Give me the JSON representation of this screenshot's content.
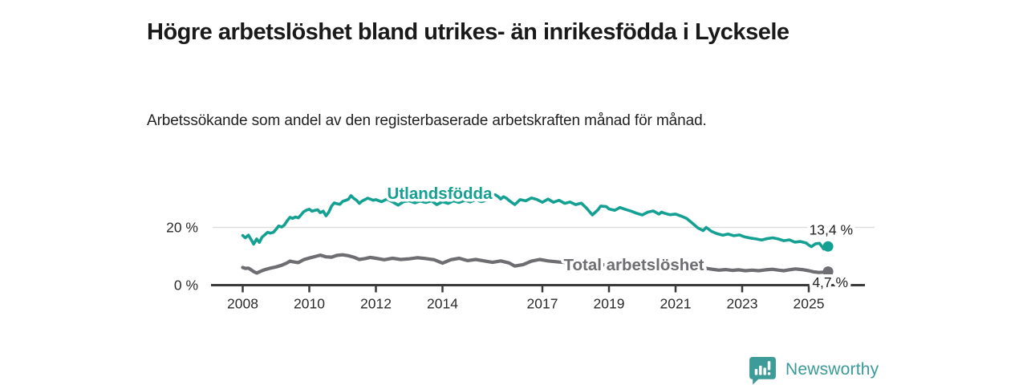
{
  "header": {
    "title": "Högre arbetslöshet bland utrikes- än inrikesfödda i Lycksele",
    "subtitle": "Arbetssökande som andel av den registerbaserade arbetskraften månad för månad."
  },
  "chart_data": {
    "type": "line",
    "unit": "%",
    "title": "",
    "xlabel": "",
    "ylabel": "",
    "ylim": [
      0,
      36
    ],
    "xlim": [
      2007.9,
      2025.8
    ],
    "grid": "single light horizontal gridline at 20 %",
    "gridlines_at": [
      20
    ],
    "legend_position": "inline labels placed on the lines",
    "y_ticks": [
      {
        "value": 20,
        "label": "20 %"
      },
      {
        "value": 0,
        "label": "0 %"
      }
    ],
    "x_ticks": [
      {
        "value": 2008,
        "label": "2008"
      },
      {
        "value": 2010,
        "label": "2010"
      },
      {
        "value": 2012,
        "label": "2012"
      },
      {
        "value": 2014,
        "label": "2014"
      },
      {
        "value": 2017,
        "label": "2017"
      },
      {
        "value": 2019,
        "label": "2019"
      },
      {
        "value": 2021,
        "label": "2021"
      },
      {
        "value": 2023,
        "label": "2023"
      },
      {
        "value": 2025,
        "label": "2025"
      }
    ],
    "series": [
      {
        "name": "Utlandsfödda",
        "color": "#14A092",
        "end_value": 13.4,
        "end_label": "13,4 %",
        "points": [
          [
            2008.0,
            17.2
          ],
          [
            2008.08,
            16.4
          ],
          [
            2008.17,
            17.3
          ],
          [
            2008.25,
            15.8
          ],
          [
            2008.33,
            14.2
          ],
          [
            2008.42,
            16.0
          ],
          [
            2008.5,
            14.8
          ],
          [
            2008.58,
            16.6
          ],
          [
            2008.67,
            17.5
          ],
          [
            2008.75,
            18.3
          ],
          [
            2008.83,
            18.0
          ],
          [
            2008.92,
            18.3
          ],
          [
            2009.0,
            19.3
          ],
          [
            2009.08,
            20.5
          ],
          [
            2009.17,
            20.1
          ],
          [
            2009.25,
            20.8
          ],
          [
            2009.33,
            22.2
          ],
          [
            2009.42,
            23.5
          ],
          [
            2009.5,
            23.1
          ],
          [
            2009.58,
            23.6
          ],
          [
            2009.67,
            23.3
          ],
          [
            2009.75,
            24.3
          ],
          [
            2009.83,
            25.4
          ],
          [
            2009.92,
            26.0
          ],
          [
            2010.0,
            26.3
          ],
          [
            2010.08,
            25.6
          ],
          [
            2010.17,
            25.9
          ],
          [
            2010.25,
            26.1
          ],
          [
            2010.33,
            25.1
          ],
          [
            2010.42,
            25.6
          ],
          [
            2010.5,
            24.0
          ],
          [
            2010.58,
            25.2
          ],
          [
            2010.67,
            27.4
          ],
          [
            2010.75,
            28.5
          ],
          [
            2010.83,
            28.2
          ],
          [
            2010.92,
            28.0
          ],
          [
            2011.0,
            29.0
          ],
          [
            2011.08,
            29.3
          ],
          [
            2011.17,
            29.7
          ],
          [
            2011.25,
            31.0
          ],
          [
            2011.33,
            30.1
          ],
          [
            2011.42,
            29.4
          ],
          [
            2011.5,
            28.3
          ],
          [
            2011.58,
            29.1
          ],
          [
            2011.67,
            29.6
          ],
          [
            2011.75,
            30.1
          ],
          [
            2011.83,
            29.8
          ],
          [
            2011.92,
            29.4
          ],
          [
            2012.0,
            29.6
          ],
          [
            2012.17,
            28.9
          ],
          [
            2012.33,
            29.8
          ],
          [
            2012.5,
            28.8
          ],
          [
            2012.67,
            27.7
          ],
          [
            2012.83,
            28.9
          ],
          [
            2013.0,
            29.2
          ],
          [
            2013.17,
            28.5
          ],
          [
            2013.33,
            29.1
          ],
          [
            2013.5,
            28.6
          ],
          [
            2013.67,
            29.2
          ],
          [
            2013.83,
            27.9
          ],
          [
            2014.0,
            28.9
          ],
          [
            2014.17,
            28.3
          ],
          [
            2014.33,
            29.2
          ],
          [
            2014.5,
            28.6
          ],
          [
            2014.67,
            29.4
          ],
          [
            2014.83,
            28.8
          ],
          [
            2015.0,
            29.6
          ],
          [
            2015.17,
            28.9
          ],
          [
            2015.33,
            29.4
          ],
          [
            2015.5,
            30.6
          ],
          [
            2015.58,
            31.3
          ],
          [
            2015.67,
            30.7
          ],
          [
            2015.75,
            29.8
          ],
          [
            2015.83,
            30.6
          ],
          [
            2015.92,
            30.1
          ],
          [
            2016.0,
            29.3
          ],
          [
            2016.17,
            27.9
          ],
          [
            2016.33,
            29.6
          ],
          [
            2016.5,
            29.2
          ],
          [
            2016.67,
            30.2
          ],
          [
            2016.83,
            29.7
          ],
          [
            2017.0,
            28.7
          ],
          [
            2017.17,
            29.8
          ],
          [
            2017.33,
            28.7
          ],
          [
            2017.5,
            29.4
          ],
          [
            2017.67,
            28.3
          ],
          [
            2017.83,
            28.8
          ],
          [
            2018.0,
            27.9
          ],
          [
            2018.17,
            28.4
          ],
          [
            2018.33,
            26.6
          ],
          [
            2018.5,
            24.3
          ],
          [
            2018.67,
            26.1
          ],
          [
            2018.75,
            27.4
          ],
          [
            2018.92,
            27.2
          ],
          [
            2019.0,
            26.4
          ],
          [
            2019.17,
            25.9
          ],
          [
            2019.33,
            26.9
          ],
          [
            2019.5,
            26.2
          ],
          [
            2019.67,
            25.6
          ],
          [
            2019.83,
            24.9
          ],
          [
            2020.0,
            24.3
          ],
          [
            2020.17,
            25.3
          ],
          [
            2020.33,
            25.7
          ],
          [
            2020.5,
            24.6
          ],
          [
            2020.58,
            25.3
          ],
          [
            2020.67,
            24.9
          ],
          [
            2020.83,
            24.4
          ],
          [
            2021.0,
            24.6
          ],
          [
            2021.17,
            23.9
          ],
          [
            2021.33,
            23.1
          ],
          [
            2021.5,
            21.5
          ],
          [
            2021.67,
            19.8
          ],
          [
            2021.83,
            18.9
          ],
          [
            2021.92,
            20.0
          ],
          [
            2022.08,
            18.6
          ],
          [
            2022.25,
            17.8
          ],
          [
            2022.42,
            17.3
          ],
          [
            2022.58,
            17.7
          ],
          [
            2022.75,
            17.1
          ],
          [
            2022.92,
            17.4
          ],
          [
            2023.08,
            16.7
          ],
          [
            2023.25,
            16.3
          ],
          [
            2023.42,
            16.0
          ],
          [
            2023.58,
            15.6
          ],
          [
            2023.75,
            16.1
          ],
          [
            2023.92,
            16.4
          ],
          [
            2024.08,
            16.0
          ],
          [
            2024.25,
            15.4
          ],
          [
            2024.42,
            15.7
          ],
          [
            2024.58,
            14.9
          ],
          [
            2024.75,
            15.1
          ],
          [
            2024.92,
            14.6
          ],
          [
            2025.0,
            13.9
          ],
          [
            2025.08,
            13.3
          ],
          [
            2025.2,
            14.3
          ],
          [
            2025.32,
            14.5
          ],
          [
            2025.45,
            12.5
          ],
          [
            2025.58,
            13.4
          ]
        ]
      },
      {
        "name": "Total arbetslöshet",
        "color": "#6D6D72",
        "end_value": 4.7,
        "end_label": "4,7 %",
        "points": [
          [
            2008.0,
            6.1
          ],
          [
            2008.08,
            5.8
          ],
          [
            2008.17,
            5.9
          ],
          [
            2008.25,
            5.3
          ],
          [
            2008.33,
            4.7
          ],
          [
            2008.42,
            4.2
          ],
          [
            2008.5,
            4.6
          ],
          [
            2008.58,
            5.0
          ],
          [
            2008.67,
            5.4
          ],
          [
            2008.83,
            5.9
          ],
          [
            2009.0,
            6.3
          ],
          [
            2009.17,
            6.9
          ],
          [
            2009.33,
            7.7
          ],
          [
            2009.42,
            8.3
          ],
          [
            2009.5,
            8.1
          ],
          [
            2009.67,
            7.8
          ],
          [
            2009.83,
            8.8
          ],
          [
            2010.0,
            9.4
          ],
          [
            2010.17,
            9.9
          ],
          [
            2010.33,
            10.4
          ],
          [
            2010.5,
            9.8
          ],
          [
            2010.67,
            9.7
          ],
          [
            2010.83,
            10.3
          ],
          [
            2011.0,
            10.5
          ],
          [
            2011.17,
            10.2
          ],
          [
            2011.33,
            9.7
          ],
          [
            2011.5,
            8.9
          ],
          [
            2011.67,
            9.2
          ],
          [
            2011.83,
            9.6
          ],
          [
            2012.0,
            9.3
          ],
          [
            2012.25,
            8.8
          ],
          [
            2012.5,
            9.3
          ],
          [
            2012.75,
            8.9
          ],
          [
            2013.0,
            9.1
          ],
          [
            2013.25,
            9.5
          ],
          [
            2013.5,
            9.2
          ],
          [
            2013.75,
            8.8
          ],
          [
            2014.0,
            7.6
          ],
          [
            2014.25,
            8.8
          ],
          [
            2014.5,
            9.3
          ],
          [
            2014.75,
            8.5
          ],
          [
            2015.0,
            8.9
          ],
          [
            2015.25,
            8.4
          ],
          [
            2015.5,
            7.9
          ],
          [
            2015.75,
            8.4
          ],
          [
            2016.0,
            7.7
          ],
          [
            2016.17,
            6.6
          ],
          [
            2016.42,
            7.1
          ],
          [
            2016.67,
            8.3
          ],
          [
            2016.92,
            8.9
          ],
          [
            2017.17,
            8.4
          ],
          [
            2017.5,
            8.0
          ],
          [
            2017.75,
            7.8
          ],
          [
            2018.0,
            7.4
          ],
          [
            2018.25,
            7.2
          ],
          [
            2018.5,
            6.9
          ],
          [
            2018.75,
            7.1
          ],
          [
            2019.0,
            6.9
          ],
          [
            2019.25,
            6.7
          ],
          [
            2019.5,
            6.6
          ],
          [
            2019.75,
            6.5
          ],
          [
            2020.0,
            6.6
          ],
          [
            2020.25,
            7.0
          ],
          [
            2020.5,
            7.2
          ],
          [
            2020.75,
            7.0
          ],
          [
            2021.0,
            6.8
          ],
          [
            2021.25,
            6.5
          ],
          [
            2021.5,
            6.2
          ],
          [
            2021.75,
            5.9
          ],
          [
            2021.92,
            5.8
          ],
          [
            2022.1,
            5.5
          ],
          [
            2022.3,
            5.2
          ],
          [
            2022.5,
            5.4
          ],
          [
            2022.7,
            5.1
          ],
          [
            2022.9,
            5.3
          ],
          [
            2023.1,
            5.0
          ],
          [
            2023.3,
            5.2
          ],
          [
            2023.5,
            5.0
          ],
          [
            2023.7,
            5.3
          ],
          [
            2023.9,
            5.5
          ],
          [
            2024.1,
            5.2
          ],
          [
            2024.25,
            5.0
          ],
          [
            2024.4,
            5.3
          ],
          [
            2024.6,
            5.6
          ],
          [
            2024.8,
            5.4
          ],
          [
            2025.0,
            5.0
          ],
          [
            2025.15,
            4.6
          ],
          [
            2025.3,
            4.4
          ],
          [
            2025.45,
            4.5
          ],
          [
            2025.58,
            4.7
          ]
        ]
      }
    ]
  },
  "footer": {
    "brand": "Newsworthy",
    "logo_icon": "newsworthy-speech-bubble-bar-chart-icon",
    "brand_color": "#3A9A97"
  }
}
